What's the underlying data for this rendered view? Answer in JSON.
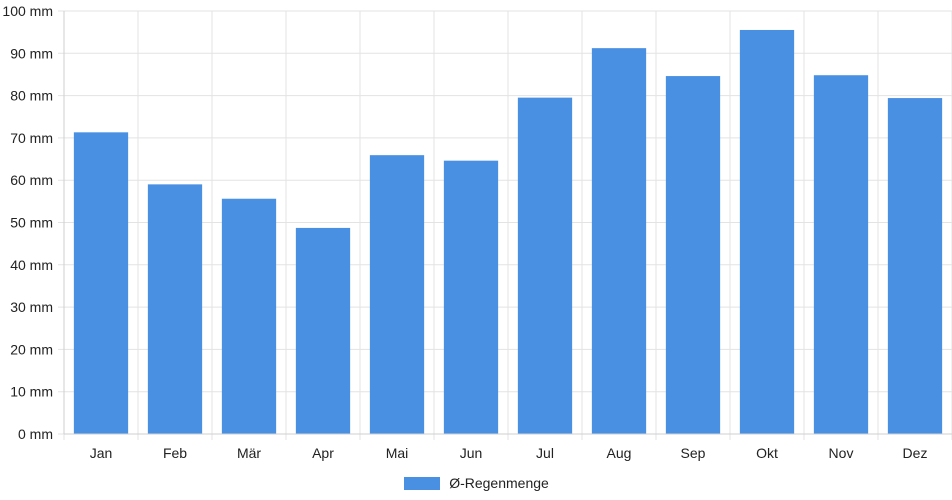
{
  "chart_data": {
    "type": "bar",
    "categories": [
      "Jan",
      "Feb",
      "Mär",
      "Apr",
      "Mai",
      "Jun",
      "Jul",
      "Aug",
      "Sep",
      "Okt",
      "Nov",
      "Dez"
    ],
    "series": [
      {
        "name": "Ø-Regenmenge",
        "values": [
          71.2,
          58.9,
          55.5,
          48.6,
          65.8,
          64.5,
          79.4,
          91.1,
          84.5,
          95.4,
          84.7,
          79.3
        ],
        "color": "#4a90e2"
      }
    ],
    "ylim": [
      0,
      100
    ],
    "ytick_step": 10,
    "y_unit": "mm",
    "grid": true,
    "legend_position": "bottom"
  }
}
